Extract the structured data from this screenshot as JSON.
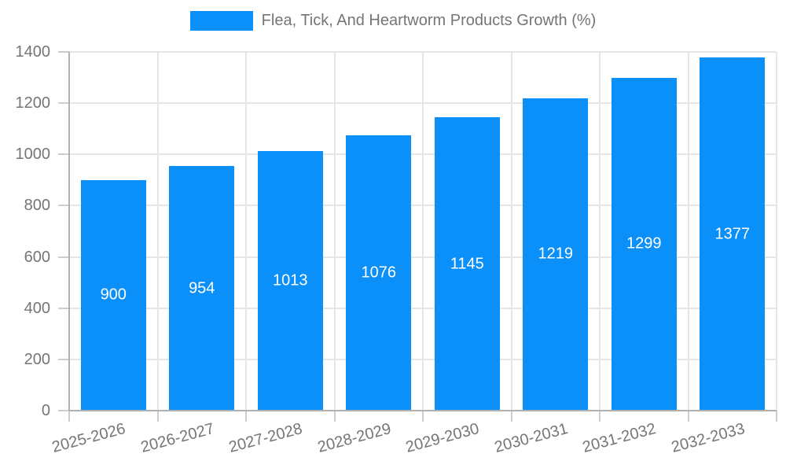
{
  "legend": {
    "label": "Flea, Tick, And Heartworm Products Growth (%)"
  },
  "chart_data": {
    "type": "bar",
    "title": "Flea, Tick, And Heartworm Products Growth (%)",
    "categories": [
      "2025-2026",
      "2026-2027",
      "2027-2028",
      "2028-2029",
      "2029-2030",
      "2030-2031",
      "2031-2032",
      "2032-2033"
    ],
    "values": [
      900,
      954,
      1013,
      1076,
      1145,
      1219,
      1299,
      1377
    ],
    "value_labels": [
      "900",
      "954",
      "1013",
      "1076",
      "1145",
      "1219",
      "1299",
      "1377"
    ],
    "xlabel": "",
    "ylabel": "",
    "ylim": [
      0,
      1400
    ],
    "yticks": [
      0,
      200,
      400,
      600,
      800,
      1000,
      1200,
      1400
    ],
    "ytick_labels": [
      "0",
      "200",
      "400",
      "600",
      "800",
      "1000",
      "1200",
      "1400"
    ],
    "grid": true,
    "legend_position": "top",
    "bar_color": "#0a90f8",
    "value_label_color": "#ffffff",
    "axis_text_color": "#757575",
    "gridline_color": "#e6e6e6",
    "axis_line_color": "#b0b0b0"
  }
}
